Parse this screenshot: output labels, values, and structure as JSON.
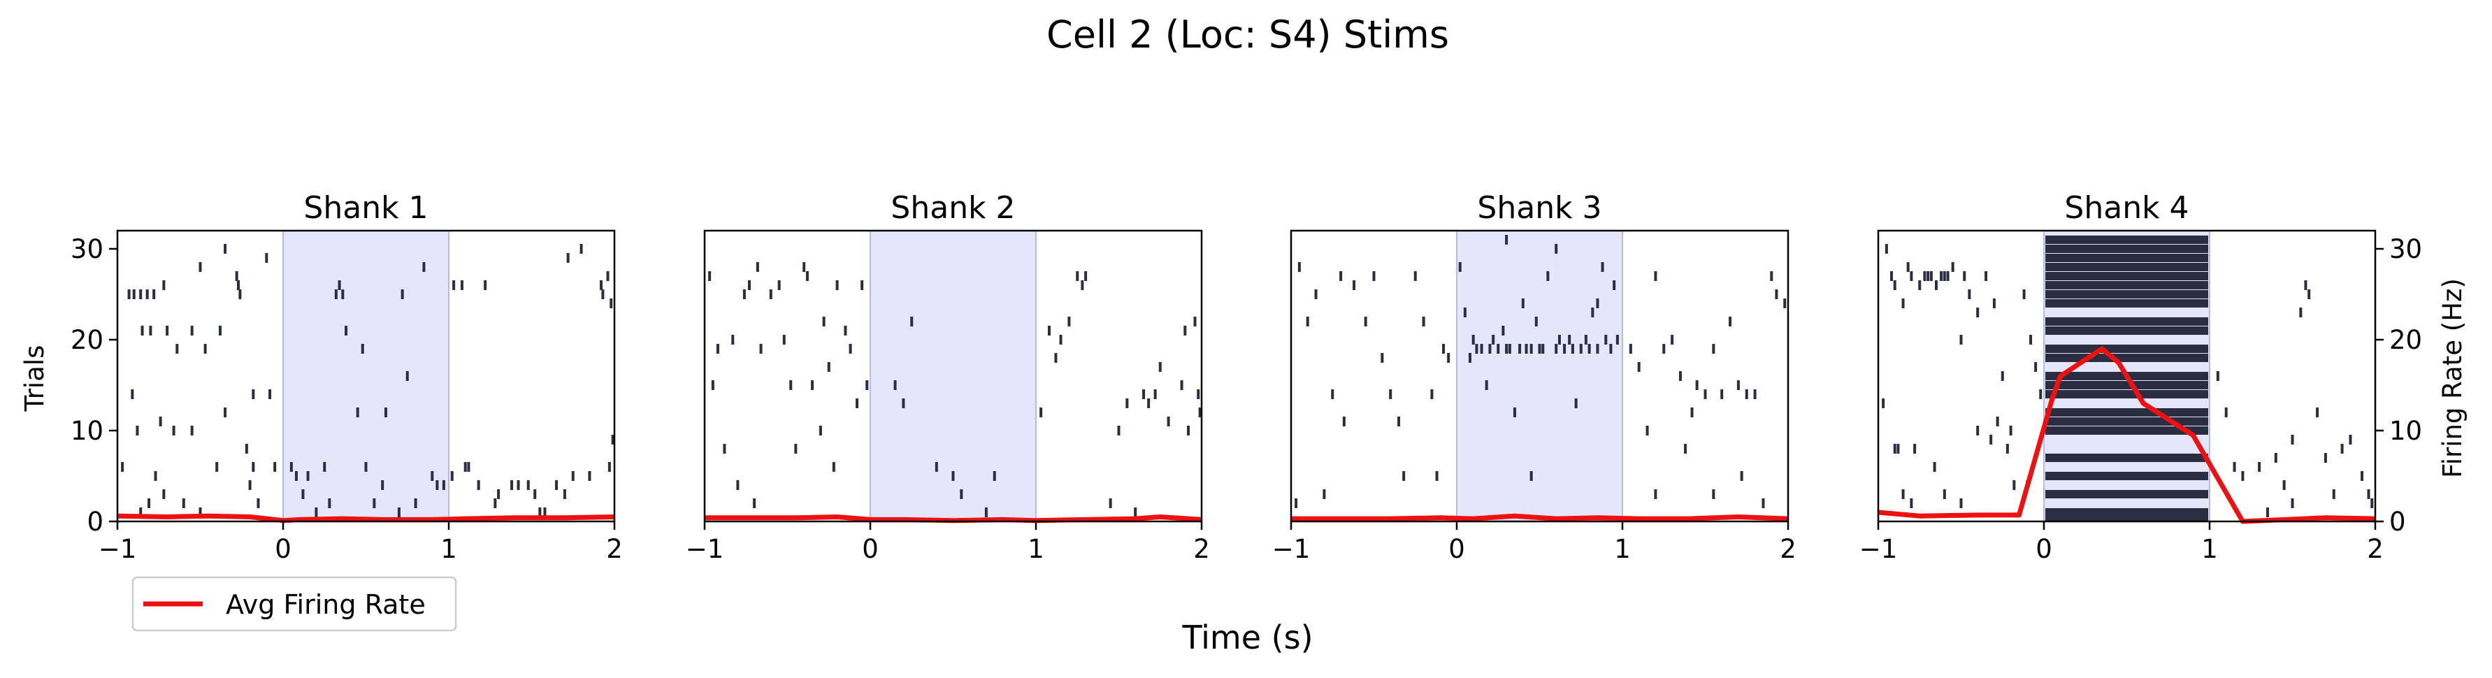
{
  "figure": {
    "suptitle": "Cell 2 (Loc: S4) Stims",
    "xlabel": "Time (s)",
    "ylabel_left": "Trials",
    "ylabel_right": "Firing Rate (Hz)",
    "legend_label": "Avg Firing Rate",
    "raster_color": "#2b2d42",
    "rate_color": "#ee1111",
    "stim_color": "#e5e5fb",
    "stim_edge_color": "#b8b8ea"
  },
  "chart_data": [
    {
      "type": "raster",
      "title": "Shank 1",
      "xlim": [
        -1,
        2
      ],
      "ylim": [
        0,
        32
      ],
      "xticks": [
        -1,
        0,
        1,
        2
      ],
      "yticks": [
        0,
        10,
        20,
        30
      ],
      "stim_window": [
        0,
        1
      ],
      "rate_series": {
        "name": "Avg Firing Rate",
        "x": [
          -1.0,
          -0.7,
          -0.45,
          -0.2,
          0.0,
          0.1,
          0.35,
          0.6,
          0.9,
          1.1,
          1.4,
          1.7,
          2.0
        ],
        "y": [
          0.6,
          0.5,
          0.6,
          0.5,
          0.1,
          0.2,
          0.3,
          0.2,
          0.2,
          0.3,
          0.4,
          0.4,
          0.5
        ]
      },
      "spikes": [
        [
          -0.97,
          6
        ],
        [
          -0.86,
          1
        ],
        [
          -0.81,
          2
        ],
        [
          -0.93,
          25
        ],
        [
          -0.9,
          25
        ],
        [
          -0.86,
          25
        ],
        [
          -0.82,
          25
        ],
        [
          -0.78,
          25
        ],
        [
          -0.91,
          14
        ],
        [
          -0.88,
          10
        ],
        [
          -0.85,
          21
        ],
        [
          -0.8,
          21
        ],
        [
          -0.72,
          26
        ],
        [
          -0.7,
          21
        ],
        [
          -0.64,
          19
        ],
        [
          -0.74,
          11
        ],
        [
          -0.66,
          10
        ],
        [
          -0.55,
          10
        ],
        [
          -0.77,
          5
        ],
        [
          -0.72,
          3
        ],
        [
          -0.6,
          2
        ],
        [
          -0.5,
          1
        ],
        [
          -0.4,
          6
        ],
        [
          -0.55,
          21
        ],
        [
          -0.5,
          28
        ],
        [
          -0.47,
          19
        ],
        [
          -0.38,
          21
        ],
        [
          -0.35,
          12
        ],
        [
          -0.28,
          27
        ],
        [
          -0.27,
          26
        ],
        [
          -0.26,
          25
        ],
        [
          -0.22,
          8
        ],
        [
          -0.18,
          14
        ],
        [
          -0.35,
          30
        ],
        [
          -0.2,
          4
        ],
        [
          -0.18,
          6
        ],
        [
          -0.15,
          2
        ],
        [
          -0.08,
          14
        ],
        [
          -0.05,
          6
        ],
        [
          -0.1,
          29
        ],
        [
          0.05,
          6
        ],
        [
          0.12,
          3
        ],
        [
          0.15,
          5
        ],
        [
          0.2,
          1
        ],
        [
          0.25,
          6
        ],
        [
          0.28,
          2
        ],
        [
          0.32,
          25
        ],
        [
          0.34,
          26
        ],
        [
          0.36,
          25
        ],
        [
          0.38,
          21
        ],
        [
          0.45,
          12
        ],
        [
          0.5,
          6
        ],
        [
          0.55,
          2
        ],
        [
          0.6,
          4
        ],
        [
          0.7,
          1
        ],
        [
          0.72,
          25
        ],
        [
          0.75,
          16
        ],
        [
          0.8,
          2
        ],
        [
          0.85,
          28
        ],
        [
          0.9,
          5
        ],
        [
          0.93,
          4
        ],
        [
          0.97,
          4
        ],
        [
          1.03,
          26
        ],
        [
          1.08,
          26
        ],
        [
          1.12,
          6
        ],
        [
          1.18,
          4
        ],
        [
          1.22,
          26
        ],
        [
          1.28,
          2
        ],
        [
          1.3,
          3
        ],
        [
          1.38,
          4
        ],
        [
          1.42,
          4
        ],
        [
          1.48,
          4
        ],
        [
          1.52,
          3
        ],
        [
          1.58,
          1
        ],
        [
          1.65,
          4
        ],
        [
          1.7,
          3
        ],
        [
          1.72,
          29
        ],
        [
          1.75,
          5
        ],
        [
          1.8,
          30
        ],
        [
          1.85,
          5
        ],
        [
          1.92,
          26
        ],
        [
          1.93,
          25
        ],
        [
          1.96,
          27
        ],
        [
          1.98,
          24
        ],
        [
          1.99,
          9
        ],
        [
          1.97,
          6
        ],
        [
          1.1,
          6
        ],
        [
          1.02,
          5
        ],
        [
          0.08,
          5
        ],
        [
          0.48,
          19
        ],
        [
          0.62,
          12
        ],
        [
          1.55,
          1
        ]
      ]
    },
    {
      "type": "raster",
      "title": "Shank 2",
      "xlim": [
        -1,
        2
      ],
      "ylim": [
        0,
        32
      ],
      "xticks": [
        -1,
        0,
        1,
        2
      ],
      "yticks": [
        0,
        10,
        20,
        30
      ],
      "stim_window": [
        0,
        1
      ],
      "rate_series": {
        "name": "Avg Firing Rate",
        "x": [
          -1.0,
          -0.7,
          -0.45,
          -0.2,
          0.0,
          0.2,
          0.5,
          0.8,
          1.0,
          1.3,
          1.6,
          1.75,
          2.0
        ],
        "y": [
          0.4,
          0.4,
          0.4,
          0.5,
          0.2,
          0.2,
          0.1,
          0.2,
          0.1,
          0.2,
          0.3,
          0.5,
          0.2
        ]
      },
      "spikes": [
        [
          -0.97,
          27
        ],
        [
          -0.95,
          15
        ],
        [
          -0.92,
          19
        ],
        [
          -0.88,
          8
        ],
        [
          -0.83,
          20
        ],
        [
          -0.8,
          4
        ],
        [
          -0.76,
          25
        ],
        [
          -0.73,
          26
        ],
        [
          -0.7,
          2
        ],
        [
          -0.68,
          28
        ],
        [
          -0.66,
          19
        ],
        [
          -0.6,
          25
        ],
        [
          -0.55,
          26
        ],
        [
          -0.52,
          20
        ],
        [
          -0.48,
          15
        ],
        [
          -0.45,
          8
        ],
        [
          -0.4,
          28
        ],
        [
          -0.38,
          27
        ],
        [
          -0.35,
          15
        ],
        [
          -0.3,
          10
        ],
        [
          -0.28,
          22
        ],
        [
          -0.25,
          17
        ],
        [
          -0.22,
          6
        ],
        [
          -0.2,
          26
        ],
        [
          -0.15,
          21
        ],
        [
          -0.12,
          19
        ],
        [
          -0.08,
          13
        ],
        [
          -0.05,
          26
        ],
        [
          -0.02,
          15
        ],
        [
          0.15,
          15
        ],
        [
          0.2,
          13
        ],
        [
          0.25,
          22
        ],
        [
          0.4,
          6
        ],
        [
          0.5,
          5
        ],
        [
          0.55,
          3
        ],
        [
          0.7,
          1
        ],
        [
          0.75,
          5
        ],
        [
          1.03,
          12
        ],
        [
          1.08,
          21
        ],
        [
          1.12,
          18
        ],
        [
          1.15,
          20
        ],
        [
          1.2,
          22
        ],
        [
          1.25,
          27
        ],
        [
          1.28,
          26
        ],
        [
          1.3,
          27
        ],
        [
          1.45,
          2
        ],
        [
          1.5,
          10
        ],
        [
          1.55,
          13
        ],
        [
          1.6,
          1
        ],
        [
          1.65,
          14
        ],
        [
          1.68,
          13
        ],
        [
          1.72,
          14
        ],
        [
          1.75,
          17
        ],
        [
          1.8,
          11
        ],
        [
          1.88,
          15
        ],
        [
          1.92,
          10
        ],
        [
          1.96,
          22
        ],
        [
          1.99,
          12
        ],
        [
          1.98,
          14
        ],
        [
          1.9,
          21
        ]
      ]
    },
    {
      "type": "raster",
      "title": "Shank 3",
      "xlim": [
        -1,
        2
      ],
      "ylim": [
        0,
        32
      ],
      "xticks": [
        -1,
        0,
        1,
        2
      ],
      "yticks": [
        0,
        10,
        20,
        30
      ],
      "stim_window": [
        0,
        1
      ],
      "rate_series": {
        "name": "Avg Firing Rate",
        "x": [
          -1.0,
          -0.7,
          -0.4,
          -0.1,
          0.1,
          0.35,
          0.6,
          0.85,
          1.1,
          1.4,
          1.7,
          2.0
        ],
        "y": [
          0.3,
          0.3,
          0.3,
          0.4,
          0.3,
          0.6,
          0.3,
          0.4,
          0.3,
          0.3,
          0.5,
          0.3
        ]
      },
      "spikes": [
        [
          -0.97,
          2
        ],
        [
          -0.95,
          28
        ],
        [
          -0.9,
          22
        ],
        [
          -0.85,
          25
        ],
        [
          -0.8,
          3
        ],
        [
          -0.75,
          14
        ],
        [
          -0.7,
          27
        ],
        [
          -0.68,
          11
        ],
        [
          -0.62,
          26
        ],
        [
          -0.55,
          22
        ],
        [
          -0.5,
          27
        ],
        [
          -0.45,
          18
        ],
        [
          -0.4,
          14
        ],
        [
          -0.35,
          11
        ],
        [
          -0.32,
          5
        ],
        [
          -0.25,
          27
        ],
        [
          -0.2,
          22
        ],
        [
          -0.15,
          14
        ],
        [
          -0.12,
          5
        ],
        [
          -0.08,
          19
        ],
        [
          -0.05,
          18
        ],
        [
          0.02,
          28
        ],
        [
          0.05,
          23
        ],
        [
          0.08,
          18
        ],
        [
          0.1,
          20
        ],
        [
          0.12,
          19
        ],
        [
          0.15,
          19
        ],
        [
          0.2,
          19
        ],
        [
          0.22,
          20
        ],
        [
          0.25,
          19
        ],
        [
          0.28,
          21
        ],
        [
          0.3,
          19
        ],
        [
          0.32,
          19
        ],
        [
          0.35,
          12
        ],
        [
          0.38,
          19
        ],
        [
          0.4,
          24
        ],
        [
          0.42,
          19
        ],
        [
          0.45,
          19
        ],
        [
          0.48,
          22
        ],
        [
          0.5,
          19
        ],
        [
          0.52,
          19
        ],
        [
          0.55,
          27
        ],
        [
          0.6,
          19
        ],
        [
          0.62,
          20
        ],
        [
          0.65,
          19
        ],
        [
          0.68,
          20
        ],
        [
          0.7,
          19
        ],
        [
          0.72,
          13
        ],
        [
          0.75,
          19
        ],
        [
          0.78,
          20
        ],
        [
          0.8,
          19
        ],
        [
          0.82,
          23
        ],
        [
          0.85,
          19
        ],
        [
          0.88,
          28
        ],
        [
          0.9,
          20
        ],
        [
          0.93,
          19
        ],
        [
          0.95,
          26
        ],
        [
          0.97,
          20
        ],
        [
          0.45,
          5
        ],
        [
          0.18,
          15
        ],
        [
          0.3,
          31
        ],
        [
          0.6,
          30
        ],
        [
          0.85,
          24
        ],
        [
          1.05,
          19
        ],
        [
          1.1,
          17
        ],
        [
          1.15,
          10
        ],
        [
          1.2,
          27
        ],
        [
          1.25,
          19
        ],
        [
          1.3,
          20
        ],
        [
          1.35,
          16
        ],
        [
          1.38,
          8
        ],
        [
          1.42,
          12
        ],
        [
          1.45,
          15
        ],
        [
          1.5,
          14
        ],
        [
          1.55,
          19
        ],
        [
          1.6,
          14
        ],
        [
          1.65,
          22
        ],
        [
          1.7,
          15
        ],
        [
          1.72,
          5
        ],
        [
          1.75,
          14
        ],
        [
          1.8,
          14
        ],
        [
          1.85,
          2
        ],
        [
          1.9,
          27
        ],
        [
          1.93,
          25
        ],
        [
          1.98,
          24
        ],
        [
          1.55,
          3
        ],
        [
          1.2,
          3
        ]
      ]
    },
    {
      "type": "raster",
      "title": "Shank 4",
      "xlim": [
        -1,
        2
      ],
      "ylim": [
        0,
        32
      ],
      "xticks": [
        -1,
        0,
        1,
        2
      ],
      "yticks": [
        0,
        10,
        20,
        30
      ],
      "y2lim": [
        0,
        32
      ],
      "y2ticks": [
        0,
        10,
        20,
        30
      ],
      "stim_window": [
        0,
        1
      ],
      "dense_rows": [
        31,
        30,
        29,
        28,
        27,
        26,
        25,
        24,
        22,
        21,
        19,
        18,
        16,
        15,
        14,
        12,
        11,
        10,
        7,
        5,
        3,
        1,
        0.5
      ],
      "rate_series": {
        "name": "Avg Firing Rate",
        "x": [
          -1.0,
          -0.75,
          -0.4,
          -0.15,
          0.05,
          0.1,
          0.35,
          0.45,
          0.6,
          0.9,
          1.2,
          1.7,
          2.0
        ],
        "y": [
          1.0,
          0.6,
          0.7,
          0.7,
          13.5,
          16.0,
          19.0,
          17.5,
          13.0,
          9.5,
          0.0,
          0.4,
          0.3
        ]
      },
      "spikes": [
        [
          -0.95,
          30
        ],
        [
          -0.92,
          27
        ],
        [
          -0.9,
          26
        ],
        [
          -0.88,
          8
        ],
        [
          -0.85,
          24
        ],
        [
          -0.82,
          28
        ],
        [
          -0.8,
          27
        ],
        [
          -0.75,
          26
        ],
        [
          -0.72,
          27
        ],
        [
          -0.7,
          27
        ],
        [
          -0.68,
          27
        ],
        [
          -0.65,
          26
        ],
        [
          -0.62,
          27
        ],
        [
          -0.6,
          27
        ],
        [
          -0.58,
          27
        ],
        [
          -0.55,
          28
        ],
        [
          -0.5,
          20
        ],
        [
          -0.48,
          27
        ],
        [
          -0.45,
          25
        ],
        [
          -0.4,
          23
        ],
        [
          -0.35,
          27
        ],
        [
          -0.3,
          24
        ],
        [
          -0.28,
          11
        ],
        [
          -0.25,
          16
        ],
        [
          -0.2,
          10
        ],
        [
          -0.18,
          4
        ],
        [
          -0.12,
          25
        ],
        [
          -0.08,
          20
        ],
        [
          -0.05,
          17
        ],
        [
          -0.02,
          14
        ],
        [
          -0.97,
          13
        ],
        [
          -0.9,
          8
        ],
        [
          -0.85,
          3
        ],
        [
          -0.8,
          2
        ],
        [
          -0.78,
          8
        ],
        [
          -0.66,
          6
        ],
        [
          -0.6,
          3
        ],
        [
          -0.5,
          2
        ],
        [
          -0.4,
          10
        ],
        [
          -0.32,
          9
        ],
        [
          -0.22,
          8
        ],
        [
          -0.1,
          4
        ],
        [
          1.05,
          16
        ],
        [
          1.1,
          12
        ],
        [
          1.15,
          6
        ],
        [
          1.2,
          5
        ],
        [
          1.3,
          6
        ],
        [
          1.4,
          7
        ],
        [
          1.5,
          9
        ],
        [
          1.55,
          23
        ],
        [
          1.58,
          26
        ],
        [
          1.6,
          25
        ],
        [
          1.65,
          12
        ],
        [
          1.7,
          7
        ],
        [
          1.75,
          3
        ],
        [
          1.8,
          8
        ],
        [
          1.85,
          9
        ],
        [
          1.92,
          5
        ],
        [
          1.96,
          3
        ],
        [
          1.98,
          2
        ],
        [
          1.5,
          2
        ],
        [
          1.45,
          4
        ],
        [
          1.35,
          1
        ]
      ]
    }
  ]
}
